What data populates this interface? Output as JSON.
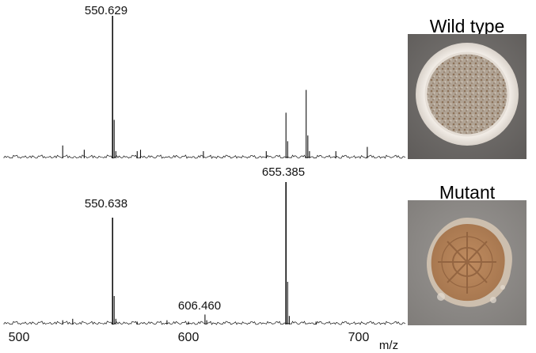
{
  "chart_data": [
    {
      "type": "line",
      "panel": "wild_type",
      "xlim": [
        485,
        728
      ],
      "ylim": [
        0,
        1
      ],
      "peaks": [
        {
          "x": 520.5,
          "y": 0.09
        },
        {
          "x": 533.5,
          "y": 0.06
        },
        {
          "x": 550.629,
          "y": 1.0,
          "label": "550.629"
        },
        {
          "x": 551.6,
          "y": 0.27
        },
        {
          "x": 552.6,
          "y": 0.05
        },
        {
          "x": 565.5,
          "y": 0.05
        },
        {
          "x": 567.5,
          "y": 0.06
        },
        {
          "x": 605.5,
          "y": 0.05
        },
        {
          "x": 643.5,
          "y": 0.05
        },
        {
          "x": 655.4,
          "y": 0.32
        },
        {
          "x": 656.4,
          "y": 0.12
        },
        {
          "x": 667.6,
          "y": 0.48
        },
        {
          "x": 668.6,
          "y": 0.16
        },
        {
          "x": 669.6,
          "y": 0.05
        },
        {
          "x": 685.5,
          "y": 0.05
        },
        {
          "x": 704.5,
          "y": 0.08
        }
      ]
    },
    {
      "type": "line",
      "panel": "mutant",
      "xlim": [
        485,
        728
      ],
      "ylim": [
        0,
        1
      ],
      "xticks": [
        500,
        600,
        700
      ],
      "xlabel": "m/z",
      "peaks": [
        {
          "x": 520.5,
          "y": 0.03
        },
        {
          "x": 526.5,
          "y": 0.04
        },
        {
          "x": 550.638,
          "y": 0.75,
          "label": "550.638"
        },
        {
          "x": 551.6,
          "y": 0.2
        },
        {
          "x": 552.6,
          "y": 0.04
        },
        {
          "x": 565.5,
          "y": 0.02
        },
        {
          "x": 583.5,
          "y": 0.03
        },
        {
          "x": 596.5,
          "y": 0.02
        },
        {
          "x": 606.46,
          "y": 0.07,
          "label": "606.460"
        },
        {
          "x": 607.5,
          "y": 0.03
        },
        {
          "x": 655.385,
          "y": 1.0,
          "label": "655.385"
        },
        {
          "x": 656.4,
          "y": 0.3
        },
        {
          "x": 657.4,
          "y": 0.06
        },
        {
          "x": 673.5,
          "y": 0.02
        }
      ]
    }
  ],
  "images": {
    "wild_type": {
      "title": "Wild type",
      "background": "#6e6b68",
      "colony_rim": "#ebe5df",
      "colony_center": "#a8998a",
      "colony_speckle": "#8a6f55"
    },
    "mutant": {
      "title": "Mutant",
      "background": "#8f8c89",
      "colony_rim": "#c7b7a3",
      "colony_center": "#b8865c",
      "colony_texture": "#8c5e3c"
    }
  },
  "colors": {
    "trace": "#111111",
    "text": "#111111"
  }
}
